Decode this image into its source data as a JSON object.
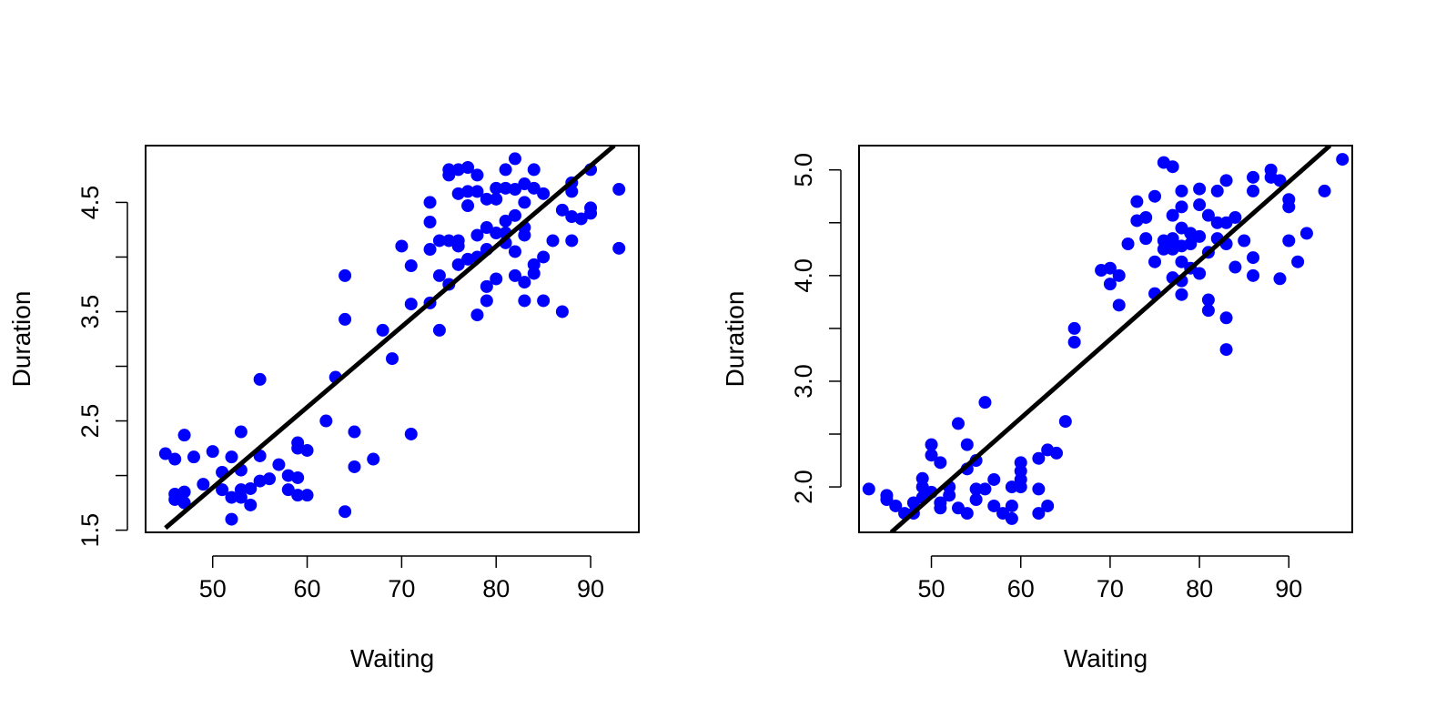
{
  "chart_data": [
    {
      "type": "scatter",
      "title": "",
      "xlabel": "Waiting",
      "ylabel": "Duration",
      "xlim": [
        42.9,
        95.1
      ],
      "ylim": [
        1.48,
        5.02
      ],
      "xticks": [
        50,
        60,
        70,
        80,
        90
      ],
      "xtick_labels": [
        "50",
        "60",
        "70",
        "80",
        "90"
      ],
      "yticks": [
        1.5,
        2.0,
        2.5,
        3.0,
        3.5,
        4.0,
        4.5
      ],
      "ytick_labels": [
        "1.5",
        "",
        "2.5",
        "",
        "3.5",
        "",
        "4.5"
      ],
      "grid": false,
      "legend": "none",
      "marker_color": "#0000ff",
      "line_color": "#000000",
      "series": [
        {
          "values": [
            [
              45,
              2.2
            ],
            [
              46,
              2.15
            ],
            [
              46,
              1.83
            ],
            [
              46,
              1.78
            ],
            [
              47,
              1.85
            ],
            [
              47,
              2.37
            ],
            [
              47,
              1.75
            ],
            [
              48,
              2.17
            ],
            [
              49,
              1.92
            ],
            [
              50,
              2.22
            ],
            [
              51,
              2.03
            ],
            [
              51,
              1.87
            ],
            [
              52,
              2.17
            ],
            [
              52,
              1.8
            ],
            [
              52,
              1.6
            ],
            [
              53,
              2.05
            ],
            [
              53,
              2.4
            ],
            [
              53,
              1.87
            ],
            [
              53,
              1.8
            ],
            [
              54,
              1.73
            ],
            [
              54,
              1.88
            ],
            [
              55,
              1.95
            ],
            [
              55,
              2.18
            ],
            [
              55,
              2.88
            ],
            [
              56,
              1.97
            ],
            [
              57,
              2.1
            ],
            [
              58,
              2.0
            ],
            [
              58,
              1.87
            ],
            [
              59,
              2.3
            ],
            [
              59,
              2.25
            ],
            [
              59,
              1.98
            ],
            [
              59,
              1.82
            ],
            [
              60,
              1.82
            ],
            [
              60,
              2.23
            ],
            [
              62,
              2.5
            ],
            [
              63,
              2.9
            ],
            [
              64,
              1.67
            ],
            [
              64,
              3.43
            ],
            [
              64,
              3.83
            ],
            [
              65,
              2.4
            ],
            [
              65,
              2.08
            ],
            [
              67,
              2.15
            ],
            [
              68,
              3.33
            ],
            [
              69,
              3.07
            ],
            [
              70,
              4.1
            ],
            [
              71,
              3.92
            ],
            [
              71,
              3.57
            ],
            [
              71,
              2.38
            ],
            [
              73,
              4.5
            ],
            [
              73,
              4.32
            ],
            [
              73,
              4.07
            ],
            [
              73,
              3.58
            ],
            [
              74,
              4.15
            ],
            [
              74,
              3.83
            ],
            [
              74,
              3.33
            ],
            [
              75,
              4.15
            ],
            [
              75,
              4.8
            ],
            [
              75,
              4.75
            ],
            [
              75,
              3.75
            ],
            [
              76,
              4.1
            ],
            [
              76,
              4.15
            ],
            [
              76,
              4.58
            ],
            [
              76,
              4.8
            ],
            [
              76,
              3.93
            ],
            [
              77,
              3.98
            ],
            [
              77,
              4.47
            ],
            [
              77,
              4.6
            ],
            [
              77,
              4.82
            ],
            [
              78,
              4.75
            ],
            [
              78,
              4.2
            ],
            [
              78,
              4.0
            ],
            [
              78,
              3.47
            ],
            [
              78,
              4.6
            ],
            [
              79,
              4.53
            ],
            [
              79,
              4.27
            ],
            [
              79,
              4.07
            ],
            [
              79,
              3.73
            ],
            [
              79,
              3.6
            ],
            [
              80,
              4.63
            ],
            [
              80,
              4.53
            ],
            [
              80,
              4.22
            ],
            [
              80,
              3.8
            ],
            [
              81,
              4.8
            ],
            [
              81,
              4.33
            ],
            [
              81,
              4.13
            ],
            [
              81,
              4.22
            ],
            [
              81,
              4.63
            ],
            [
              82,
              4.9
            ],
            [
              82,
              4.62
            ],
            [
              82,
              4.38
            ],
            [
              82,
              4.05
            ],
            [
              82,
              3.83
            ],
            [
              83,
              4.2
            ],
            [
              83,
              4.5
            ],
            [
              83,
              4.67
            ],
            [
              83,
              3.77
            ],
            [
              83,
              3.6
            ],
            [
              83,
              4.27
            ],
            [
              84,
              4.8
            ],
            [
              84,
              4.63
            ],
            [
              84,
              3.93
            ],
            [
              84,
              3.85
            ],
            [
              85,
              4.58
            ],
            [
              85,
              4.0
            ],
            [
              85,
              3.6
            ],
            [
              86,
              4.15
            ],
            [
              87,
              4.43
            ],
            [
              87,
              3.5
            ],
            [
              88,
              4.68
            ],
            [
              88,
              4.37
            ],
            [
              88,
              4.15
            ],
            [
              88,
              4.6
            ],
            [
              89,
              4.35
            ],
            [
              90,
              4.8
            ],
            [
              90,
              4.45
            ],
            [
              90,
              4.4
            ],
            [
              93,
              4.62
            ],
            [
              93,
              4.08
            ]
          ]
        }
      ],
      "fit_line": [
        [
          45,
          1.52
        ],
        [
          92.5,
          5.02
        ]
      ]
    },
    {
      "type": "scatter",
      "title": "",
      "xlabel": "Waiting",
      "ylabel": "Duration",
      "xlim": [
        41.9,
        97.1
      ],
      "ylim": [
        1.57,
        5.23
      ],
      "xticks": [
        50,
        60,
        70,
        80,
        90
      ],
      "xtick_labels": [
        "50",
        "60",
        "70",
        "80",
        "90"
      ],
      "yticks": [
        2.0,
        2.5,
        3.0,
        3.5,
        4.0,
        4.5,
        5.0
      ],
      "ytick_labels": [
        "2.0",
        "",
        "3.0",
        "",
        "4.0",
        "",
        "5.0"
      ],
      "grid": false,
      "legend": "none",
      "marker_color": "#0000ff",
      "line_color": "#000000",
      "series": [
        {
          "values": [
            [
              43,
              1.98
            ],
            [
              45,
              1.88
            ],
            [
              45,
              1.92
            ],
            [
              46,
              1.82
            ],
            [
              47,
              1.75
            ],
            [
              48,
              1.85
            ],
            [
              48,
              1.75
            ],
            [
              49,
              2.08
            ],
            [
              49,
              2.0
            ],
            [
              49,
              1.9
            ],
            [
              50,
              2.4
            ],
            [
              50,
              2.3
            ],
            [
              50,
              1.95
            ],
            [
              51,
              2.23
            ],
            [
              51,
              1.85
            ],
            [
              51,
              1.8
            ],
            [
              52,
              2.0
            ],
            [
              52,
              1.92
            ],
            [
              53,
              2.6
            ],
            [
              53,
              1.8
            ],
            [
              54,
              2.4
            ],
            [
              54,
              2.17
            ],
            [
              54,
              1.75
            ],
            [
              55,
              2.25
            ],
            [
              55,
              1.98
            ],
            [
              55,
              1.88
            ],
            [
              56,
              2.8
            ],
            [
              56,
              1.98
            ],
            [
              57,
              2.07
            ],
            [
              57,
              1.82
            ],
            [
              58,
              1.75
            ],
            [
              59,
              2.0
            ],
            [
              59,
              1.82
            ],
            [
              59,
              1.7
            ],
            [
              60,
              2.23
            ],
            [
              60,
              2.15
            ],
            [
              60,
              2.07
            ],
            [
              60,
              2.0
            ],
            [
              62,
              2.27
            ],
            [
              62,
              1.98
            ],
            [
              62,
              1.75
            ],
            [
              63,
              2.35
            ],
            [
              63,
              1.82
            ],
            [
              64,
              2.32
            ],
            [
              65,
              2.62
            ],
            [
              66,
              3.5
            ],
            [
              66,
              3.37
            ],
            [
              69,
              4.05
            ],
            [
              70,
              4.07
            ],
            [
              70,
              3.92
            ],
            [
              71,
              4.0
            ],
            [
              71,
              3.72
            ],
            [
              72,
              4.3
            ],
            [
              73,
              4.7
            ],
            [
              73,
              4.52
            ],
            [
              74,
              4.55
            ],
            [
              74,
              4.35
            ],
            [
              75,
              4.75
            ],
            [
              75,
              4.13
            ],
            [
              75,
              3.83
            ],
            [
              76,
              5.07
            ],
            [
              76,
              4.33
            ],
            [
              76,
              4.25
            ],
            [
              77,
              5.03
            ],
            [
              77,
              4.57
            ],
            [
              77,
              4.35
            ],
            [
              77,
              4.25
            ],
            [
              77,
              3.98
            ],
            [
              78,
              4.8
            ],
            [
              78,
              4.65
            ],
            [
              78,
              4.45
            ],
            [
              78,
              4.28
            ],
            [
              78,
              4.13
            ],
            [
              78,
              3.95
            ],
            [
              78,
              3.82
            ],
            [
              79,
              4.4
            ],
            [
              79,
              4.3
            ],
            [
              79,
              4.07
            ],
            [
              80,
              4.82
            ],
            [
              80,
              4.67
            ],
            [
              80,
              4.37
            ],
            [
              80,
              4.02
            ],
            [
              81,
              4.57
            ],
            [
              81,
              4.22
            ],
            [
              81,
              3.77
            ],
            [
              81,
              3.67
            ],
            [
              82,
              4.8
            ],
            [
              82,
              4.5
            ],
            [
              82,
              4.35
            ],
            [
              83,
              4.9
            ],
            [
              83,
              4.5
            ],
            [
              83,
              4.3
            ],
            [
              83,
              3.6
            ],
            [
              83,
              3.3
            ],
            [
              84,
              4.55
            ],
            [
              84,
              4.08
            ],
            [
              85,
              4.33
            ],
            [
              86,
              4.93
            ],
            [
              86,
              4.8
            ],
            [
              86,
              4.17
            ],
            [
              86,
              4.0
            ],
            [
              88,
              5.0
            ],
            [
              88,
              4.93
            ],
            [
              89,
              4.9
            ],
            [
              89,
              3.97
            ],
            [
              90,
              4.72
            ],
            [
              90,
              4.65
            ],
            [
              90,
              4.33
            ],
            [
              91,
              4.13
            ],
            [
              92,
              4.4
            ],
            [
              94,
              4.8
            ],
            [
              96,
              5.1
            ]
          ]
        }
      ],
      "fit_line": [
        [
          45.5,
          1.57
        ],
        [
          94.6,
          5.23
        ]
      ]
    }
  ]
}
